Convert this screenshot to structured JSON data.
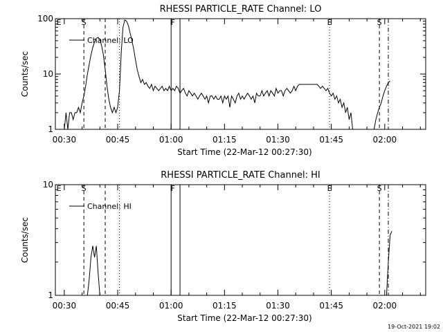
{
  "chart_data": [
    {
      "type": "line",
      "title": "RHESSI PARTICLE_RATE Channel: LO",
      "ylabel": "Counts/sec",
      "xlabel": "Start Time (22-Mar-12 00:27:30)",
      "yscale": "log",
      "ylim": [
        1,
        100
      ],
      "xlim_minutes": [
        27.5,
        131.5
      ],
      "xticks": [
        {
          "minute": 30,
          "label": "00:30"
        },
        {
          "minute": 45,
          "label": "00:45"
        },
        {
          "minute": 60,
          "label": "01:00"
        },
        {
          "minute": 75,
          "label": "01:15"
        },
        {
          "minute": 90,
          "label": "01:30"
        },
        {
          "minute": 105,
          "label": "01:45"
        },
        {
          "minute": 120,
          "label": "02:00"
        }
      ],
      "yticks": [
        {
          "value": 1,
          "label": "1"
        },
        {
          "value": 10,
          "label": "10"
        },
        {
          "value": 100,
          "label": "100"
        }
      ],
      "legend": "Channel: LO",
      "series": [
        {
          "name": "Channel: LO",
          "segments": [
            [
              [
                30,
                1
              ],
              [
                30.5,
                2
              ],
              [
                31,
                1
              ],
              [
                31.5,
                2
              ],
              [
                32,
                2
              ],
              [
                32.5,
                1.5
              ],
              [
                33,
                2
              ],
              [
                33.5,
                2
              ],
              [
                34,
                2.5
              ],
              [
                34.5,
                2
              ],
              [
                35,
                3
              ],
              [
                35.5,
                4
              ],
              [
                36,
                6
              ],
              [
                36.5,
                10
              ],
              [
                37,
                15
              ],
              [
                37.5,
                22
              ],
              [
                38,
                30
              ],
              [
                38.5,
                38
              ],
              [
                39,
                44
              ],
              [
                39.5,
                46
              ],
              [
                40,
                42
              ],
              [
                40.5,
                32
              ],
              [
                41,
                22
              ],
              [
                41.5,
                12
              ],
              [
                42,
                6
              ],
              [
                42.5,
                3.5
              ],
              [
                43,
                2.5
              ],
              [
                43.5,
                2
              ],
              [
                44,
                2.5
              ],
              [
                44.5,
                2
              ],
              [
                45,
                2.5
              ],
              [
                45.5,
                5
              ],
              [
                46,
                25
              ],
              [
                46.5,
                70
              ],
              [
                47,
                95
              ],
              [
                47.5,
                90
              ],
              [
                48,
                75
              ],
              [
                48.5,
                55
              ],
              [
                49,
                40
              ],
              [
                49.5,
                28
              ],
              [
                50,
                18
              ],
              [
                50.5,
                12
              ],
              [
                51,
                9
              ],
              [
                51.5,
                7
              ],
              [
                52,
                8
              ],
              [
                52.5,
                6.5
              ],
              [
                53,
                7
              ],
              [
                53.5,
                6
              ],
              [
                54,
                5.5
              ],
              [
                54.5,
                6.5
              ],
              [
                55,
                5
              ],
              [
                55.5,
                6
              ],
              [
                56,
                5.5
              ],
              [
                56.5,
                5
              ],
              [
                57,
                5.5
              ],
              [
                57.5,
                6
              ],
              [
                58,
                5
              ],
              [
                58.5,
                5.5
              ],
              [
                59,
                5
              ],
              [
                59.5,
                6
              ],
              [
                60,
                5
              ],
              [
                60.5,
                5.5
              ],
              [
                61,
                5
              ],
              [
                61.5,
                6
              ],
              [
                62,
                5.5
              ],
              [
                62.5,
                4.5
              ],
              [
                63,
                5
              ],
              [
                63.5,
                5.5
              ],
              [
                64,
                4.5
              ],
              [
                64.5,
                4
              ],
              [
                65,
                5
              ],
              [
                65.5,
                4.5
              ],
              [
                66,
                4
              ],
              [
                66.5,
                4.5
              ],
              [
                67,
                4
              ],
              [
                67.5,
                3.5
              ],
              [
                68,
                4
              ],
              [
                68.5,
                4.5
              ],
              [
                69,
                4
              ],
              [
                69.5,
                3.5
              ],
              [
                70,
                4
              ],
              [
                70.5,
                3
              ],
              [
                71,
                4
              ],
              [
                71.5,
                4
              ],
              [
                72,
                3.5
              ],
              [
                72.5,
                4
              ],
              [
                73,
                3.5
              ],
              [
                73.5,
                3.5
              ],
              [
                74,
                4
              ],
              [
                74.5,
                3
              ],
              [
                75,
                4
              ],
              [
                75.5,
                3.5
              ],
              [
                76,
                4
              ],
              [
                76.5,
                2.5
              ],
              [
                77,
                4
              ],
              [
                77.5,
                3.5
              ],
              [
                78,
                3
              ],
              [
                78.5,
                4
              ],
              [
                79,
                4.5
              ],
              [
                79.5,
                3.5
              ],
              [
                80,
                4
              ],
              [
                80.5,
                3.5
              ],
              [
                81,
                4
              ],
              [
                81.5,
                4.5
              ],
              [
                82,
                4
              ],
              [
                82.5,
                3.5
              ],
              [
                83,
                4
              ],
              [
                83.5,
                3
              ],
              [
                84,
                4.5
              ],
              [
                84.5,
                4
              ],
              [
                85,
                4
              ],
              [
                85.5,
                5
              ],
              [
                86,
                4
              ],
              [
                86.5,
                4.5
              ],
              [
                87,
                5
              ],
              [
                87.5,
                4
              ],
              [
                88,
                5
              ],
              [
                88.5,
                4.5
              ],
              [
                89,
                4
              ],
              [
                89.5,
                5.5
              ],
              [
                90,
                4.5
              ],
              [
                90.5,
                5
              ],
              [
                91,
                5
              ],
              [
                91.5,
                4
              ],
              [
                92,
                5
              ],
              [
                92.5,
                5.5
              ],
              [
                93,
                5
              ],
              [
                93.5,
                4.5
              ],
              [
                94,
                5
              ],
              [
                94.5,
                6
              ],
              [
                95,
                5
              ],
              [
                95.5,
                6
              ],
              [
                96,
                6.5
              ],
              [
                96.5,
                6.5
              ],
              [
                97,
                6.5
              ],
              [
                97.5,
                6.5
              ],
              [
                98,
                6.5
              ],
              [
                98.5,
                6.5
              ],
              [
                99,
                6.5
              ],
              [
                99.5,
                6.5
              ],
              [
                100,
                6.5
              ],
              [
                100.5,
                6.5
              ],
              [
                101,
                6.5
              ],
              [
                101.5,
                6
              ],
              [
                102,
                5.5
              ],
              [
                102.5,
                6
              ],
              [
                103,
                5.5
              ],
              [
                103.5,
                5
              ],
              [
                104,
                5.5
              ],
              [
                104.5,
                4.5
              ],
              [
                105,
                4
              ],
              [
                105.5,
                4.5
              ],
              [
                106,
                3.5
              ],
              [
                106.5,
                4
              ],
              [
                107,
                3
              ],
              [
                107.5,
                3.5
              ],
              [
                108,
                2.5
              ],
              [
                108.5,
                3
              ],
              [
                109,
                2
              ],
              [
                109.5,
                2.5
              ],
              [
                110,
                1.5
              ],
              [
                110.5,
                2
              ],
              [
                111,
                1
              ]
            ],
            [
              [
                117,
                1
              ],
              [
                117.5,
                1.5
              ],
              [
                118,
                2
              ],
              [
                118.5,
                2.5
              ],
              [
                119,
                3
              ],
              [
                119.5,
                4
              ],
              [
                120,
                5
              ],
              [
                120.5,
                6
              ],
              [
                121,
                7
              ],
              [
                121.5,
                7.5
              ]
            ]
          ]
        }
      ],
      "vlines": [
        {
          "minute": 35.5,
          "style": "dashed"
        },
        {
          "minute": 41.5,
          "style": "dashed"
        },
        {
          "minute": 45.5,
          "style": "dotted"
        },
        {
          "minute": 60,
          "style": "solid"
        },
        {
          "minute": 62.5,
          "style": "solid"
        },
        {
          "minute": 104.5,
          "style": "dotted"
        },
        {
          "minute": 118.5,
          "style": "dashed"
        },
        {
          "minute": 121,
          "style": "dashdot"
        }
      ],
      "markers": [
        {
          "minute": 28.5,
          "label": "E"
        },
        {
          "minute": 35.5,
          "label": "S"
        },
        {
          "minute": 60.5,
          "label": "F"
        },
        {
          "minute": 104.5,
          "label": "E"
        },
        {
          "minute": 118.5,
          "label": "S"
        }
      ]
    },
    {
      "type": "line",
      "title": "RHESSI PARTICLE_RATE Channel: HI",
      "ylabel": "Counts/sec",
      "xlabel": "Start Time (22-Mar-12 00:27:30)",
      "yscale": "log",
      "ylim": [
        1,
        10
      ],
      "xlim_minutes": [
        27.5,
        131.5
      ],
      "xticks": [
        {
          "minute": 30,
          "label": "00:30"
        },
        {
          "minute": 45,
          "label": "00:45"
        },
        {
          "minute": 60,
          "label": "01:00"
        },
        {
          "minute": 75,
          "label": "01:15"
        },
        {
          "minute": 90,
          "label": "01:30"
        },
        {
          "minute": 105,
          "label": "01:45"
        },
        {
          "minute": 120,
          "label": "02:00"
        }
      ],
      "yticks": [
        {
          "value": 1,
          "label": "1"
        },
        {
          "value": 10,
          "label": "10"
        }
      ],
      "legend": "Channel: HI",
      "series": [
        {
          "name": "Channel: HI",
          "segments": [
            [
              [
                36.5,
                1
              ],
              [
                37,
                1.4
              ],
              [
                37.5,
                2.2
              ],
              [
                38,
                2.8
              ],
              [
                38.5,
                2.2
              ],
              [
                39,
                2.8
              ],
              [
                39.5,
                1.6
              ],
              [
                40,
                1
              ]
            ],
            [
              [
                120.5,
                1
              ],
              [
                121,
                2
              ],
              [
                121.5,
                3.5
              ],
              [
                122,
                3.8
              ]
            ]
          ]
        }
      ],
      "vlines": [
        {
          "minute": 35.5,
          "style": "dashed"
        },
        {
          "minute": 41.5,
          "style": "dashed"
        },
        {
          "minute": 45.5,
          "style": "dotted"
        },
        {
          "minute": 60,
          "style": "solid"
        },
        {
          "minute": 62.5,
          "style": "solid"
        },
        {
          "minute": 104.5,
          "style": "dotted"
        },
        {
          "minute": 118.5,
          "style": "dashed"
        },
        {
          "minute": 121,
          "style": "dashdot"
        }
      ],
      "markers": [
        {
          "minute": 28.5,
          "label": "E"
        },
        {
          "minute": 35.5,
          "label": "S"
        },
        {
          "minute": 60.5,
          "label": "F"
        },
        {
          "minute": 104.5,
          "label": "E"
        },
        {
          "minute": 118.5,
          "label": "S"
        }
      ]
    }
  ],
  "footer": {
    "timestamp": "19-Oct-2021 19:02"
  }
}
